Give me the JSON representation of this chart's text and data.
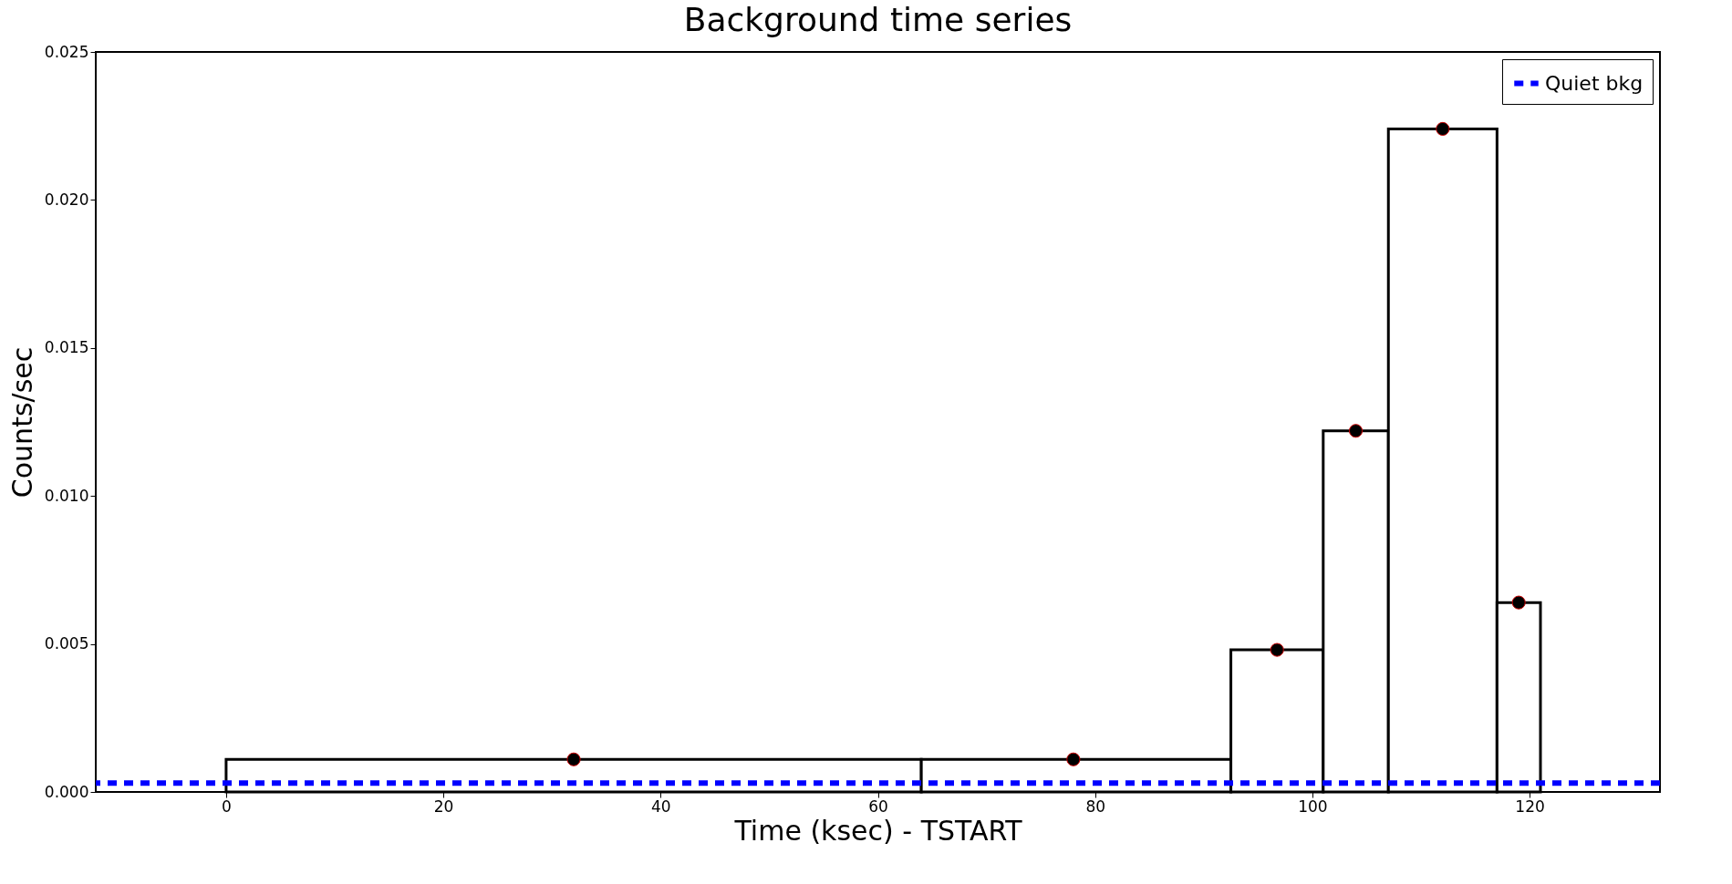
{
  "chart_data": {
    "type": "histogram",
    "title": "Background time series",
    "xlabel": "Time (ksec) - TSTART",
    "ylabel": "Counts/sec",
    "bins": [
      0,
      64,
      92.5,
      101,
      107,
      117,
      121
    ],
    "values": [
      0.0011,
      0.0011,
      0.0048,
      0.0122,
      0.0224,
      0.0064
    ],
    "color": "#000000",
    "series": [
      {
        "type": "scatter",
        "x": [
          32,
          78,
          96.75,
          104,
          112,
          119
        ],
        "values": [
          0.0011,
          0.0011,
          0.0048,
          0.0122,
          0.0224,
          0.0064
        ],
        "color": "#000000"
      }
    ],
    "ref_lines": [
      {
        "axis": "y",
        "value": 0.0003,
        "label": "Quiet bkg",
        "color": "#0000ff",
        "line_style": "dashed"
      }
    ],
    "xlim": [
      -12,
      132
    ],
    "xticks": [
      0,
      20,
      40,
      60,
      80,
      100,
      120
    ],
    "ylim": [
      0,
      0.025
    ],
    "yticks": [
      {
        "value": 0,
        "label": "0.000"
      },
      {
        "value": 0.005,
        "label": "0.005"
      },
      {
        "value": 0.01,
        "label": "0.010"
      },
      {
        "value": 0.015,
        "label": "0.015"
      },
      {
        "value": 0.02,
        "label": "0.020"
      },
      {
        "value": 0.025,
        "label": "0.025"
      }
    ],
    "grid": false,
    "legend": "top right",
    "marker": "circle"
  }
}
